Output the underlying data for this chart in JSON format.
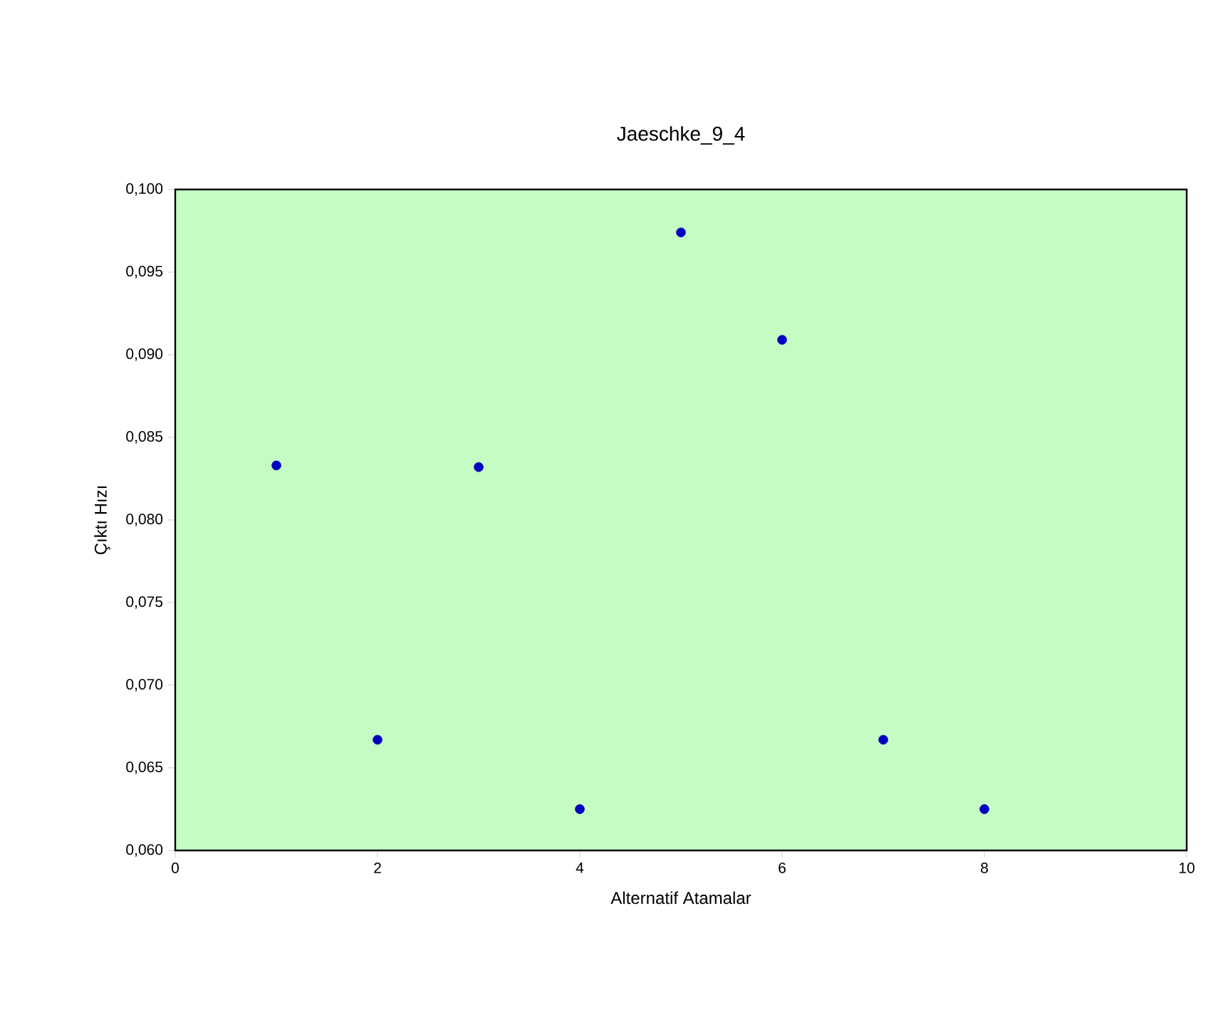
{
  "chart_data": {
    "type": "scatter",
    "title": "Jaeschke_9_4",
    "xlabel": "Alternatif Atamalar",
    "ylabel": "Çıktı Hızı",
    "x": [
      1,
      2,
      3,
      4,
      5,
      6,
      7,
      8
    ],
    "series": [
      {
        "color": "#0000c0",
        "values": [
          0.0833,
          0.0667,
          0.0832,
          0.0625,
          0.0974,
          0.0909,
          0.0667,
          0.0625
        ]
      }
    ],
    "xlim": [
      0,
      10
    ],
    "xticks": [
      0,
      2,
      4,
      6,
      8,
      10
    ],
    "ylim": [
      0.06,
      0.1
    ],
    "yticks": [
      {
        "value": 0.06,
        "label": "0,060"
      },
      {
        "value": 0.065,
        "label": "0,065"
      },
      {
        "value": 0.07,
        "label": "0,070"
      },
      {
        "value": 0.075,
        "label": "0,075"
      },
      {
        "value": 0.08,
        "label": "0,080"
      },
      {
        "value": 0.085,
        "label": "0,085"
      },
      {
        "value": 0.09,
        "label": "0,090"
      },
      {
        "value": 0.095,
        "label": "0,095"
      },
      {
        "value": 0.1,
        "label": "0,100"
      }
    ],
    "marker": "circle"
  }
}
